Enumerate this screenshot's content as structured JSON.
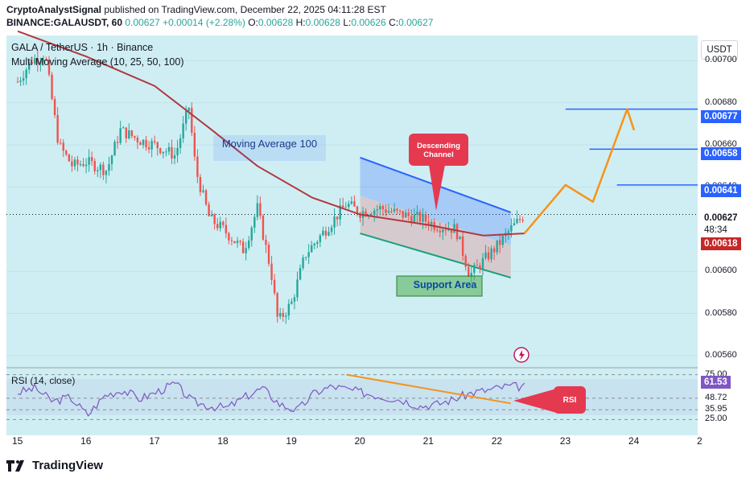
{
  "header": {
    "publisher": "CryptoAnalystSignal",
    "published_text": " published on TradingView.com, December 22, 2025 04:11:28 EST",
    "symbol": "BINANCE:GALAUSDT, 60",
    "last": "0.00627",
    "change": "+0.00014 (+2.28%)",
    "open_label": "O:",
    "open": "0.00628",
    "high_label": "H:",
    "high": "0.00628",
    "low_label": "L:",
    "low": "0.00626",
    "close_label": "C:",
    "close": "0.00627"
  },
  "legend": {
    "title": "GALA / TetherUS · 1h · Binance",
    "ma": "Multi Moving Average (10, 25, 50, 100)"
  },
  "rsi": {
    "label": "RSI (14, close)",
    "levels": [
      "75.00",
      "48.72",
      "35.95",
      "25.00"
    ],
    "current": "61.53"
  },
  "annotations": {
    "ma_label": "Moving Average 100",
    "channel_label": "Descending Channel",
    "support_label": "Support Area",
    "rsi_label": "RSI"
  },
  "currency": "USDT",
  "price_axis": {
    "ticks": [
      "0.00700",
      "0.00680",
      "0.00660",
      "0.00640",
      "0.00600",
      "0.00580",
      "0.00560"
    ],
    "badges": {
      "t1": "0.00677",
      "t2": "0.00658",
      "t3": "0.00641",
      "current": "0.00627",
      "countdown": "48:34",
      "ma": "0.00618"
    }
  },
  "time_axis": [
    "15",
    "16",
    "17",
    "18",
    "19",
    "20",
    "21",
    "22",
    "23",
    "24",
    "2"
  ],
  "colors": {
    "up": "#26a69a",
    "down": "#ef5350",
    "ma100": "#b2383f",
    "channel_blue": "#2962ff",
    "channel_green": "#1b9e77",
    "projection": "#f7931a",
    "target_lines": "#2962ff",
    "background": "#cfeef3"
  },
  "chart_data": {
    "type": "candlestick",
    "title": "GALA / TetherUS · 1h · Binance",
    "y_range": [
      0.00555,
      0.00712
    ],
    "x_labels": [
      "15",
      "16",
      "17",
      "18",
      "19",
      "20",
      "21",
      "22",
      "23",
      "24"
    ],
    "close_path": [
      [
        15.0,
        0.0069
      ],
      [
        15.2,
        0.007
      ],
      [
        15.4,
        0.00703
      ],
      [
        15.6,
        0.0066
      ],
      [
        15.8,
        0.0065
      ],
      [
        16.0,
        0.00652
      ],
      [
        16.3,
        0.00648
      ],
      [
        16.5,
        0.00667
      ],
      [
        16.8,
        0.00662
      ],
      [
        17.0,
        0.0066
      ],
      [
        17.3,
        0.00655
      ],
      [
        17.5,
        0.00678
      ],
      [
        17.6,
        0.00648
      ],
      [
        17.8,
        0.00625
      ],
      [
        18.0,
        0.0062
      ],
      [
        18.3,
        0.0061
      ],
      [
        18.5,
        0.0063
      ],
      [
        18.7,
        0.006
      ],
      [
        18.8,
        0.00576
      ],
      [
        19.0,
        0.00585
      ],
      [
        19.2,
        0.00608
      ],
      [
        19.5,
        0.0062
      ],
      [
        19.8,
        0.00632
      ],
      [
        20.0,
        0.00628
      ],
      [
        20.3,
        0.0063
      ],
      [
        20.6,
        0.00627
      ],
      [
        20.9,
        0.00625
      ],
      [
        21.1,
        0.00622
      ],
      [
        21.4,
        0.0062
      ],
      [
        21.6,
        0.00598
      ],
      [
        21.8,
        0.00605
      ],
      [
        22.0,
        0.00612
      ],
      [
        22.2,
        0.0062
      ],
      [
        22.4,
        0.00627
      ]
    ],
    "ma100": [
      [
        15.0,
        0.00714
      ],
      [
        16.0,
        0.00702
      ],
      [
        17.0,
        0.00688
      ],
      [
        17.8,
        0.00668
      ],
      [
        18.5,
        0.0065
      ],
      [
        19.3,
        0.00635
      ],
      [
        20.0,
        0.00627
      ],
      [
        21.0,
        0.00622
      ],
      [
        21.8,
        0.00617
      ],
      [
        22.4,
        0.00618
      ]
    ],
    "projection": [
      [
        22.4,
        0.00618
      ],
      [
        23.0,
        0.00641
      ],
      [
        23.4,
        0.00633
      ],
      [
        23.9,
        0.00677
      ],
      [
        24.0,
        0.00667
      ]
    ],
    "targets": [
      0.00641,
      0.00658,
      0.00677
    ],
    "rsi_values": [
      55,
      60,
      45,
      50,
      30,
      52,
      58,
      48,
      56,
      65,
      45,
      40,
      38,
      50,
      60,
      42,
      35,
      55,
      62,
      58,
      54,
      50,
      47,
      40,
      42,
      48,
      55,
      58,
      62,
      61.53
    ]
  }
}
